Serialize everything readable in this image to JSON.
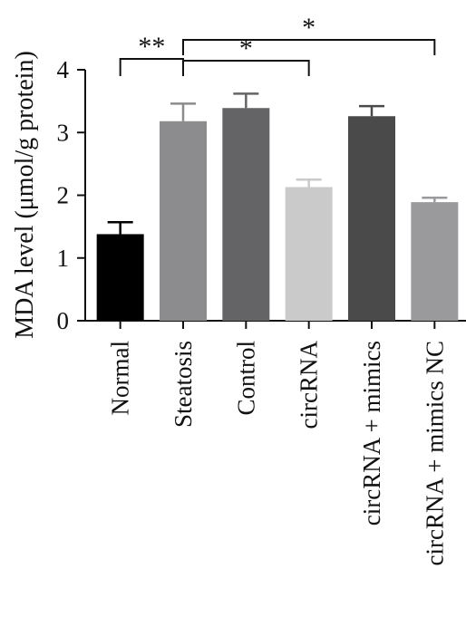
{
  "chart_data": {
    "type": "bar",
    "categories": [
      "Normal",
      "Steatosis",
      "Control",
      "circRNA",
      "circRNA + mimics",
      "circRNA + mimics NC"
    ],
    "values": [
      1.38,
      3.18,
      3.39,
      2.13,
      3.26,
      1.89
    ],
    "errors": [
      0.19,
      0.28,
      0.23,
      0.12,
      0.16,
      0.07
    ],
    "colors": [
      "#000000",
      "#8c8c8e",
      "#646466",
      "#cacaca",
      "#4a4a4a",
      "#9a9a9c"
    ],
    "ylabel": "MDA level (μmol/g protein)",
    "ylim": [
      0,
      4
    ],
    "yticks": [
      "0",
      "1",
      "2",
      "3",
      "4"
    ],
    "significance": [
      {
        "from": 0,
        "to": 1,
        "label": "**"
      },
      {
        "from": 1,
        "to": 3,
        "label": "*"
      },
      {
        "from": 1,
        "to": 5,
        "label": "*"
      }
    ]
  }
}
